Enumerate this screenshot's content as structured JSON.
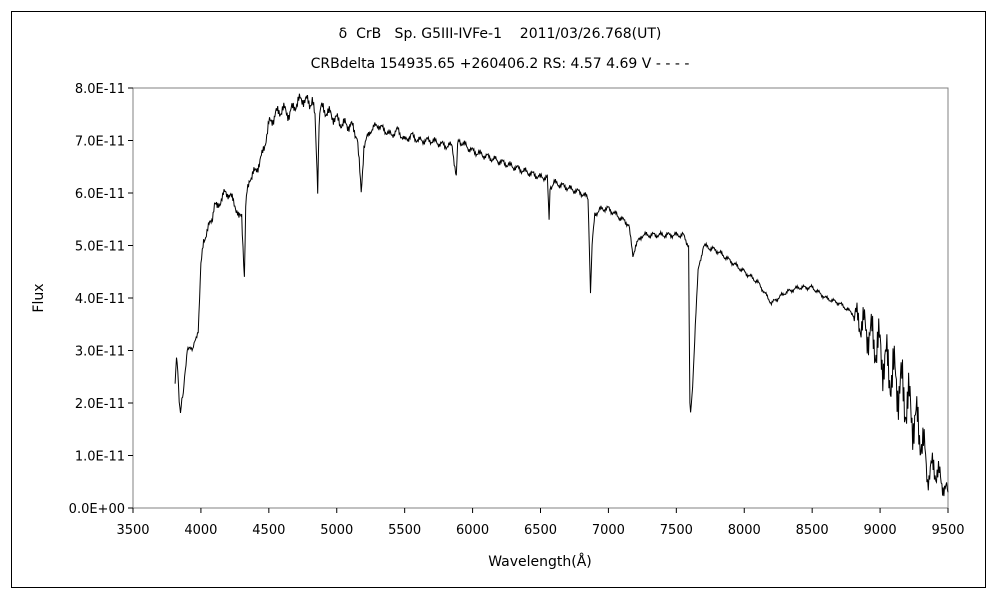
{
  "chart_data": {
    "type": "line",
    "title": "δ  CrB   Sp. G5III-IVFe-1    2011/03/26.768(UT)",
    "subtitle": "CRBdelta 154935.65 +260406.2 RS: 4.57 4.69 V - - - -",
    "xlabel": "Wavelength(Å)",
    "ylabel": "Flux",
    "xlim": [
      3500,
      9500
    ],
    "ylim": [
      0,
      8e-11
    ],
    "x_ticks": [
      "3500",
      "4000",
      "4500",
      "5000",
      "5500",
      "6000",
      "6500",
      "7000",
      "7500",
      "8000",
      "8500",
      "9000",
      "9500"
    ],
    "y_ticks": [
      "0.0E+00",
      "1.0E-11",
      "2.0E-11",
      "3.0E-11",
      "4.0E-11",
      "5.0E-11",
      "6.0E-11",
      "7.0E-11",
      "8.0E-11"
    ],
    "grid": false,
    "legend": "none",
    "series": [
      {
        "x": [
          3810,
          3820,
          3830,
          3840,
          3850,
          3860,
          3870,
          3880,
          3890,
          3900,
          3920,
          3940,
          3960,
          3980,
          4000,
          4020,
          4050,
          4080,
          4100,
          4120,
          4150,
          4180,
          4200,
          4250,
          4280,
          4300,
          4320,
          4330,
          4340,
          4360,
          4400,
          4450,
          4500,
          4550,
          4600,
          4650,
          4700,
          4750,
          4800,
          4820,
          4840,
          4860,
          4870,
          4880,
          4900,
          4950,
          5000,
          5050,
          5100,
          5150,
          5180,
          5200,
          5250,
          5300,
          5350,
          5400,
          5450,
          5500,
          5550,
          5600,
          5700,
          5800,
          5850,
          5880,
          5890,
          5900,
          5950,
          6000,
          6100,
          6200,
          6300,
          6400,
          6500,
          6550,
          6563,
          6570,
          6600,
          6700,
          6800,
          6850,
          6868,
          6880,
          6900,
          6950,
          7000,
          7050,
          7100,
          7150,
          7180,
          7200,
          7250,
          7300,
          7400,
          7500,
          7550,
          7590,
          7600,
          7605,
          7620,
          7640,
          7660,
          7700,
          7800,
          7900,
          8000,
          8100,
          8150,
          8200,
          8250,
          8300,
          8400,
          8500,
          8550,
          8600,
          8700,
          8800,
          8900,
          9000,
          9050,
          9100,
          9150,
          9200,
          9250,
          9300,
          9330,
          9350,
          9400,
          9450,
          9500
        ],
        "y": [
          2.4e-11,
          2.9e-11,
          2.6e-11,
          2e-11,
          1.8e-11,
          2.1e-11,
          2.2e-11,
          2.5e-11,
          2.7e-11,
          3e-11,
          3.1e-11,
          3e-11,
          3.2e-11,
          3.4e-11,
          4.6e-11,
          5.1e-11,
          5.3e-11,
          5.5e-11,
          5.8e-11,
          5.7e-11,
          5.9e-11,
          6e-11,
          6e-11,
          5.8e-11,
          5.5e-11,
          5.6e-11,
          4.4e-11,
          5.7e-11,
          6e-11,
          6.3e-11,
          6.4e-11,
          6.7e-11,
          7.3e-11,
          7.5e-11,
          7.6e-11,
          7.5e-11,
          7.7e-11,
          7.8e-11,
          7.7e-11,
          7.8e-11,
          7.4e-11,
          6.1e-11,
          7.4e-11,
          7.6e-11,
          7.6e-11,
          7.5e-11,
          7.4e-11,
          7.3e-11,
          7.3e-11,
          7.1e-11,
          6e-11,
          6.9e-11,
          7.2e-11,
          7.3e-11,
          7.2e-11,
          7.1e-11,
          7.2e-11,
          7e-11,
          7.1e-11,
          7e-11,
          7e-11,
          6.9e-11,
          6.9e-11,
          6.3e-11,
          6.9e-11,
          7e-11,
          6.9e-11,
          6.8e-11,
          6.7e-11,
          6.6e-11,
          6.5e-11,
          6.4e-11,
          6.3e-11,
          6.3e-11,
          5.5e-11,
          6.1e-11,
          6.2e-11,
          6.1e-11,
          6e-11,
          5.9e-11,
          4.1e-11,
          5e-11,
          5.6e-11,
          5.7e-11,
          5.7e-11,
          5.6e-11,
          5.5e-11,
          5.4e-11,
          4.8e-11,
          5e-11,
          5.2e-11,
          5.2e-11,
          5.2e-11,
          5.2e-11,
          5.2e-11,
          5e-11,
          2e-11,
          1.8e-11,
          2.3e-11,
          3.5e-11,
          4.5e-11,
          5e-11,
          4.9e-11,
          4.7e-11,
          4.5e-11,
          4.3e-11,
          4.1e-11,
          3.9e-11,
          4e-11,
          4.1e-11,
          4.2e-11,
          4.2e-11,
          4.1e-11,
          4e-11,
          3.9e-11,
          3.7e-11,
          3.4e-11,
          3e-11,
          2.7e-11,
          2.5e-11,
          2.3e-11,
          2e-11,
          1.7e-11,
          1.4e-11,
          1e-11,
          6e-12,
          8e-12,
          5e-12,
          3e-12
        ]
      }
    ]
  }
}
